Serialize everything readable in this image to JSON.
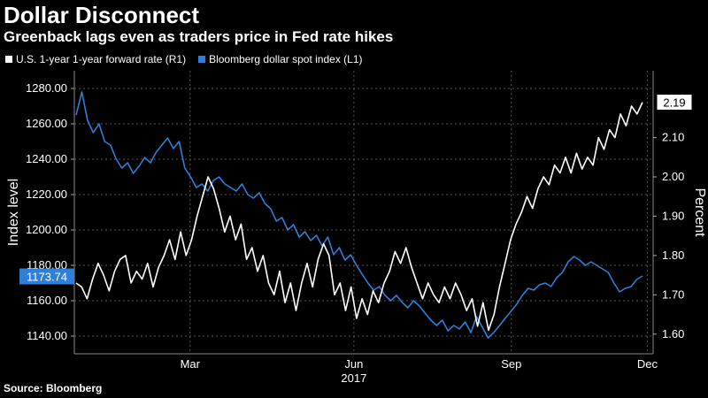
{
  "header": {
    "title": "Dollar Disconnect",
    "subtitle": "Greenback lags even as traders price in Fed rate hikes"
  },
  "source": "Source: Bloomberg",
  "colors": {
    "white_series": "#ffffff",
    "blue_series": "#2f7fd8",
    "grid": "#555555"
  },
  "chart_data": {
    "type": "line",
    "title": "Dollar Disconnect",
    "legend_position": "top-left",
    "x_tick_labels": [
      "Mar",
      "Jun",
      "Sep",
      "Dec"
    ],
    "x_year_label": "2017",
    "y_left": {
      "label": "Index level",
      "ticks": [
        "1280.00",
        "1260.00",
        "1240.00",
        "1220.00",
        "1200.00",
        "1180.00",
        "1160.00",
        "1140.00"
      ],
      "range": [
        1130,
        1290
      ]
    },
    "y_right": {
      "label": "Percent",
      "ticks": [
        "2.10",
        "2.00",
        "1.90",
        "1.80",
        "1.70",
        "1.60"
      ],
      "range": [
        1.55,
        2.27
      ]
    },
    "series": [
      {
        "name": "U.S. 1-year 1-year forward rate (R1)",
        "axis": "right",
        "last_value_label": "2.19",
        "values": [
          1.73,
          1.72,
          1.69,
          1.74,
          1.78,
          1.75,
          1.71,
          1.76,
          1.79,
          1.8,
          1.73,
          1.76,
          1.74,
          1.78,
          1.72,
          1.77,
          1.8,
          1.84,
          1.79,
          1.86,
          1.8,
          1.84,
          1.9,
          1.95,
          2.0,
          1.97,
          1.92,
          1.86,
          1.9,
          1.84,
          1.88,
          1.79,
          1.82,
          1.76,
          1.8,
          1.73,
          1.7,
          1.76,
          1.68,
          1.73,
          1.66,
          1.73,
          1.78,
          1.72,
          1.79,
          1.83,
          1.8,
          1.7,
          1.73,
          1.66,
          1.72,
          1.64,
          1.69,
          1.65,
          1.71,
          1.68,
          1.73,
          1.76,
          1.81,
          1.78,
          1.82,
          1.77,
          1.73,
          1.69,
          1.73,
          1.7,
          1.68,
          1.72,
          1.69,
          1.73,
          1.7,
          1.66,
          1.69,
          1.62,
          1.68,
          1.61,
          1.65,
          1.72,
          1.78,
          1.84,
          1.88,
          1.91,
          1.95,
          1.92,
          1.97,
          2.0,
          1.98,
          2.03,
          2.01,
          2.05,
          2.01,
          2.06,
          2.02,
          2.05,
          2.03,
          2.1,
          2.07,
          2.12,
          2.1,
          2.16,
          2.13,
          2.18,
          2.16,
          2.19
        ]
      },
      {
        "name": "Bloomberg dollar spot index (L1)",
        "axis": "left",
        "last_value_label": "1173.74",
        "values": [
          1265,
          1278,
          1262,
          1255,
          1260,
          1250,
          1248,
          1240,
          1235,
          1238,
          1232,
          1236,
          1241,
          1238,
          1244,
          1248,
          1252,
          1246,
          1250,
          1235,
          1230,
          1224,
          1226,
          1222,
          1228,
          1230,
          1226,
          1224,
          1222,
          1226,
          1220,
          1218,
          1221,
          1215,
          1212,
          1205,
          1207,
          1200,
          1203,
          1196,
          1199,
          1194,
          1197,
          1191,
          1196,
          1186,
          1190,
          1183,
          1186,
          1180,
          1175,
          1170,
          1166,
          1168,
          1163,
          1160,
          1163,
          1159,
          1156,
          1160,
          1157,
          1153,
          1149,
          1146,
          1149,
          1143,
          1146,
          1144,
          1148,
          1142,
          1151,
          1145,
          1139,
          1142,
          1146,
          1150,
          1154,
          1158,
          1163,
          1167,
          1166,
          1169,
          1170,
          1168,
          1173,
          1176,
          1182,
          1185,
          1183,
          1180,
          1182,
          1180,
          1178,
          1176,
          1170,
          1165,
          1167,
          1168,
          1172,
          1174
        ]
      }
    ]
  }
}
